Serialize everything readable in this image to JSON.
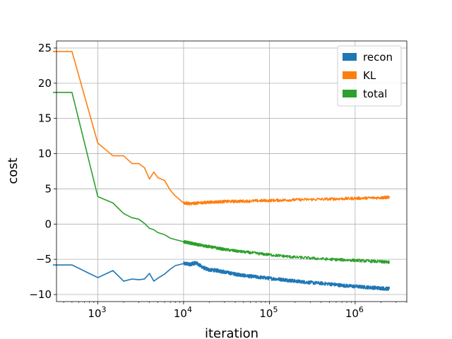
{
  "chart_data": {
    "type": "line",
    "title": "",
    "xlabel": "iteration",
    "ylabel": "cost",
    "xscale": "log",
    "xlim": [
      330,
      4000000
    ],
    "ylim": [
      -11,
      26
    ],
    "grid": true,
    "legend_position": "top-right",
    "x_ticks": [
      {
        "value": 1000,
        "base": "10",
        "exp": "3"
      },
      {
        "value": 10000,
        "base": "10",
        "exp": "4"
      },
      {
        "value": 100000,
        "base": "10",
        "exp": "5"
      },
      {
        "value": 1000000,
        "base": "10",
        "exp": "6"
      }
    ],
    "y_ticks": [
      {
        "value": 25,
        "label": "25"
      },
      {
        "value": 20,
        "label": "20"
      },
      {
        "value": 15,
        "label": "15"
      },
      {
        "value": 10,
        "label": "10"
      },
      {
        "value": 5,
        "label": "5"
      },
      {
        "value": 0,
        "label": "0"
      },
      {
        "value": -5,
        "label": "−5"
      },
      {
        "value": -10,
        "label": "−10"
      }
    ],
    "series": [
      {
        "name": "recon",
        "color": "#1f77b4",
        "x": [
          300,
          500,
          1000,
          1500,
          2000,
          2500,
          3000,
          3500,
          4000,
          4500,
          5000,
          6000,
          7000,
          8000,
          10000,
          12000,
          14000,
          17000,
          20000,
          25000,
          30000,
          40000,
          50000,
          70000,
          100000,
          150000,
          200000,
          300000,
          500000,
          700000,
          1000000,
          1500000,
          2000000,
          2500000
        ],
        "y": [
          -5.8,
          -5.8,
          -7.6,
          -6.6,
          -8.1,
          -7.8,
          -7.9,
          -7.8,
          -7.0,
          -8.1,
          -7.7,
          -7.1,
          -6.4,
          -5.9,
          -5.6,
          -5.7,
          -5.5,
          -6.2,
          -6.5,
          -6.6,
          -6.8,
          -7.1,
          -7.3,
          -7.5,
          -7.7,
          -7.9,
          -8.1,
          -8.3,
          -8.5,
          -8.7,
          -8.85,
          -9.0,
          -9.1,
          -9.2
        ],
        "noise": 0.25
      },
      {
        "name": "KL",
        "color": "#ff7f0e",
        "x": [
          300,
          500,
          1000,
          1500,
          2000,
          2500,
          3000,
          3500,
          4000,
          4500,
          5000,
          6000,
          7000,
          8000,
          10000,
          12000,
          15000,
          20000,
          30000,
          50000,
          100000,
          200000,
          500000,
          1000000,
          2000000,
          2500000
        ],
        "y": [
          24.5,
          24.5,
          11.5,
          9.7,
          9.7,
          8.6,
          8.6,
          8.0,
          6.4,
          7.4,
          6.6,
          6.2,
          4.8,
          4.0,
          3.0,
          2.9,
          3.0,
          3.1,
          3.2,
          3.25,
          3.35,
          3.45,
          3.55,
          3.65,
          3.75,
          3.8
        ],
        "noise": 0.2
      },
      {
        "name": "total",
        "color": "#2ca02c",
        "x": [
          300,
          500,
          1000,
          1500,
          2000,
          2500,
          3000,
          3500,
          4000,
          4500,
          5000,
          6000,
          7000,
          8000,
          10000,
          12000,
          15000,
          20000,
          30000,
          50000,
          100000,
          200000,
          500000,
          1000000,
          2000000,
          2500000
        ],
        "y": [
          18.7,
          18.7,
          3.9,
          3.0,
          1.5,
          0.9,
          0.7,
          0.1,
          -0.6,
          -0.8,
          -1.2,
          -1.5,
          -2.0,
          -2.2,
          -2.5,
          -2.7,
          -2.95,
          -3.2,
          -3.6,
          -3.95,
          -4.35,
          -4.7,
          -5.0,
          -5.15,
          -5.35,
          -5.4
        ],
        "noise": 0.2
      }
    ]
  }
}
